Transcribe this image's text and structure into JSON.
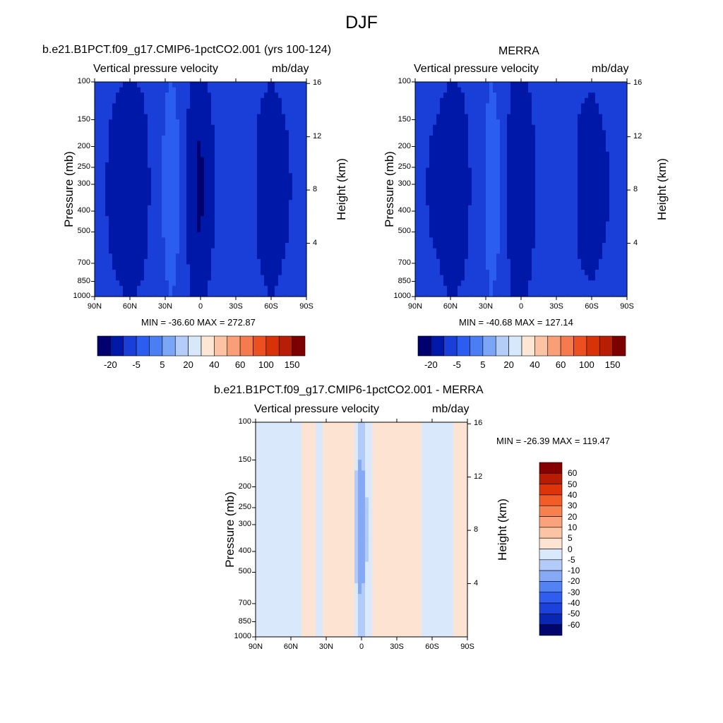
{
  "figure": {
    "title": "DJF"
  },
  "panels": [
    {
      "title": "b.e21.B1PCT.f09_g17.CMIP6-1pctCO2.001 (yrs 100-124)",
      "left_label": "Vertical pressure velocity",
      "right_label": "mb/day",
      "stats": "MIN = -36.60  MAX = 272.87"
    },
    {
      "title": "MERRA",
      "left_label": "Vertical pressure velocity",
      "right_label": "mb/day",
      "stats": "MIN = -40.68  MAX = 127.14"
    },
    {
      "title": "b.e21.B1PCT.f09_g17.CMIP6-1pctCO2.001 - MERRA",
      "left_label": "Vertical pressure velocity",
      "right_label": "mb/day",
      "stats": "MIN = -26.39  MAX = 119.47"
    }
  ],
  "axes": {
    "ylabel": "Pressure (mb)",
    "y2label": "Height (km)",
    "pressure_ticks": [
      "100",
      "150",
      "200",
      "250",
      "300",
      "400",
      "500",
      "700",
      "850",
      "1000"
    ],
    "height_ticks": [
      "16",
      "12",
      "8",
      "4"
    ],
    "lat_ticks": [
      "90N",
      "60N",
      "30N",
      "0",
      "30S",
      "60S",
      "90S"
    ]
  },
  "colorbars": {
    "field": {
      "colors": [
        "#00006e",
        "#0018a8",
        "#1a3fd8",
        "#2b5ef0",
        "#4a7ef2",
        "#7aa6f5",
        "#b3cdf8",
        "#d8e8fb",
        "#fde6d3",
        "#fbc3a4",
        "#f89f78",
        "#f57a4e",
        "#ec5021",
        "#d83208",
        "#b81e06",
        "#7d0000"
      ],
      "labels": [
        "-20",
        "-5",
        "5",
        "20",
        "40",
        "60",
        "100",
        "150"
      ]
    },
    "diff": {
      "colors": [
        "#00066e",
        "#0a27b4",
        "#1c42dc",
        "#2f5eef",
        "#5383f2",
        "#86a9f5",
        "#b3cbf8",
        "#d9e8fb",
        "#fde4d2",
        "#fbc4a5",
        "#f9a27b",
        "#f7804f",
        "#f25c27",
        "#dd3409",
        "#b81d04",
        "#860000"
      ],
      "labels": [
        "60",
        "50",
        "40",
        "30",
        "20",
        "10",
        "5",
        "0",
        "-5",
        "-10",
        "-20",
        "-30",
        "-40",
        "-50",
        "-60"
      ]
    }
  },
  "chart_data": [
    {
      "type": "heatmap",
      "title": "b.e21.B1PCT.f09_g17.CMIP6-1pctCO2.001 (yrs 100-124)",
      "subtitle": "Vertical pressure velocity",
      "units": "mb/day",
      "xlabel": "",
      "ylabel": "Pressure (mb)",
      "y2label": "Height (km)",
      "x": [
        "90N",
        "60N",
        "30N",
        "0",
        "30S",
        "60S",
        "90S"
      ],
      "y_ticks": [
        100,
        150,
        200,
        250,
        300,
        400,
        500,
        700,
        850,
        1000
      ],
      "y2_ticks": [
        16,
        12,
        8,
        4
      ],
      "y_scale": "log",
      "min": -36.6,
      "max": 272.87,
      "levels": [
        -20,
        -5,
        5,
        20,
        40,
        60,
        100,
        150
      ],
      "field_profile": [
        {
          "lat": 90,
          "v": -2
        },
        {
          "lat": 80,
          "v": -4
        },
        {
          "lat": 70,
          "v": -8
        },
        {
          "lat": 60,
          "v": -12
        },
        {
          "lat": 50,
          "v": -8
        },
        {
          "lat": 40,
          "v": -2
        },
        {
          "lat": 30,
          "v": 6
        },
        {
          "lat": 25,
          "v": 12
        },
        {
          "lat": 20,
          "v": 6
        },
        {
          "lat": 12,
          "v": -4
        },
        {
          "lat": 5,
          "v": -14
        },
        {
          "lat": 0,
          "v": -20
        },
        {
          "lat": -5,
          "v": -10
        },
        {
          "lat": -12,
          "v": -4
        },
        {
          "lat": -20,
          "v": -2
        },
        {
          "lat": -30,
          "v": 2
        },
        {
          "lat": -40,
          "v": 0
        },
        {
          "lat": -50,
          "v": -6
        },
        {
          "lat": -60,
          "v": -10
        },
        {
          "lat": -70,
          "v": -6
        },
        {
          "lat": -80,
          "v": -3
        },
        {
          "lat": -90,
          "v": -2
        }
      ]
    },
    {
      "type": "heatmap",
      "title": "MERRA",
      "subtitle": "Vertical pressure velocity",
      "units": "mb/day",
      "xlabel": "",
      "ylabel": "Pressure (mb)",
      "y2label": "Height (km)",
      "x": [
        "90N",
        "60N",
        "30N",
        "0",
        "30S",
        "60S",
        "90S"
      ],
      "y_ticks": [
        100,
        150,
        200,
        250,
        300,
        400,
        500,
        700,
        850,
        1000
      ],
      "y2_ticks": [
        16,
        12,
        8,
        4
      ],
      "y_scale": "log",
      "min": -40.68,
      "max": 127.14,
      "levels": [
        -20,
        -5,
        5,
        20,
        40,
        60,
        100,
        150
      ],
      "field_profile": [
        {
          "lat": 90,
          "v": -2
        },
        {
          "lat": 80,
          "v": -4
        },
        {
          "lat": 70,
          "v": -6
        },
        {
          "lat": 60,
          "v": -10
        },
        {
          "lat": 50,
          "v": -8
        },
        {
          "lat": 40,
          "v": -2
        },
        {
          "lat": 30,
          "v": 5
        },
        {
          "lat": 25,
          "v": 10
        },
        {
          "lat": 20,
          "v": 6
        },
        {
          "lat": 12,
          "v": -4
        },
        {
          "lat": 5,
          "v": -12
        },
        {
          "lat": 0,
          "v": -16
        },
        {
          "lat": -5,
          "v": -10
        },
        {
          "lat": -12,
          "v": -4
        },
        {
          "lat": -20,
          "v": -2
        },
        {
          "lat": -30,
          "v": 3
        },
        {
          "lat": -40,
          "v": 0
        },
        {
          "lat": -50,
          "v": -6
        },
        {
          "lat": -60,
          "v": -8
        },
        {
          "lat": -70,
          "v": -5
        },
        {
          "lat": -80,
          "v": -3
        },
        {
          "lat": -90,
          "v": -2
        }
      ]
    },
    {
      "type": "heatmap",
      "title": "b.e21.B1PCT.f09_g17.CMIP6-1pctCO2.001 - MERRA",
      "subtitle": "Vertical pressure velocity",
      "units": "mb/day",
      "xlabel": "",
      "ylabel": "Pressure (mb)",
      "y2label": "Height (km)",
      "x": [
        "90N",
        "60N",
        "30N",
        "0",
        "30S",
        "60S",
        "90S"
      ],
      "y_ticks": [
        100,
        150,
        200,
        250,
        300,
        400,
        500,
        700,
        850,
        1000
      ],
      "y2_ticks": [
        16,
        12,
        8,
        4
      ],
      "y_scale": "log",
      "min": -26.39,
      "max": 119.47,
      "levels": [
        -60,
        -50,
        -40,
        -30,
        -20,
        -10,
        -5,
        0,
        5,
        10,
        20,
        30,
        40,
        50,
        60
      ],
      "field_profile": [
        {
          "lat": 90,
          "v": -1
        },
        {
          "lat": 75,
          "v": -2
        },
        {
          "lat": 60,
          "v": -1
        },
        {
          "lat": 45,
          "v": 1
        },
        {
          "lat": 35,
          "v": -1
        },
        {
          "lat": 25,
          "v": 2
        },
        {
          "lat": 15,
          "v": 4
        },
        {
          "lat": 8,
          "v": 2
        },
        {
          "lat": 3,
          "v": -8
        },
        {
          "lat": 0,
          "v": -14
        },
        {
          "lat": -3,
          "v": -6
        },
        {
          "lat": -10,
          "v": 2
        },
        {
          "lat": -20,
          "v": 4
        },
        {
          "lat": -30,
          "v": 1
        },
        {
          "lat": -45,
          "v": 1
        },
        {
          "lat": -55,
          "v": -1
        },
        {
          "lat": -70,
          "v": -2
        },
        {
          "lat": -85,
          "v": 2
        },
        {
          "lat": -90,
          "v": 1
        }
      ]
    }
  ]
}
